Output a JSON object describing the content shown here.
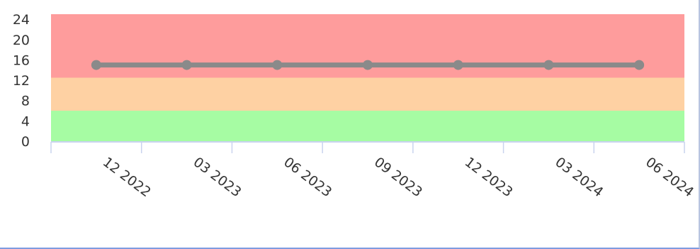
{
  "chart_data": {
    "type": "line",
    "x_tick_labels": [
      "12 2022",
      "03 2023",
      "06 2023",
      "09 2023",
      "12 2023",
      "03 2024",
      "06 2024"
    ],
    "y_tick_labels": [
      "0",
      "4",
      "8",
      "12",
      "16",
      "20",
      "24"
    ],
    "ylim": [
      0,
      25
    ],
    "grid": false,
    "series": [
      {
        "values": [
          15,
          15,
          15,
          15,
          15,
          15,
          15
        ],
        "color": "#8a8a8a"
      }
    ],
    "bands": [
      {
        "from": 0,
        "to": 6,
        "color": "#a6fca3"
      },
      {
        "from": 6,
        "to": 12.5,
        "color": "#fed1a3"
      },
      {
        "from": 12.5,
        "to": 25,
        "color": "#fe9c9c"
      }
    ],
    "axis_color": "#c9d3ee"
  }
}
